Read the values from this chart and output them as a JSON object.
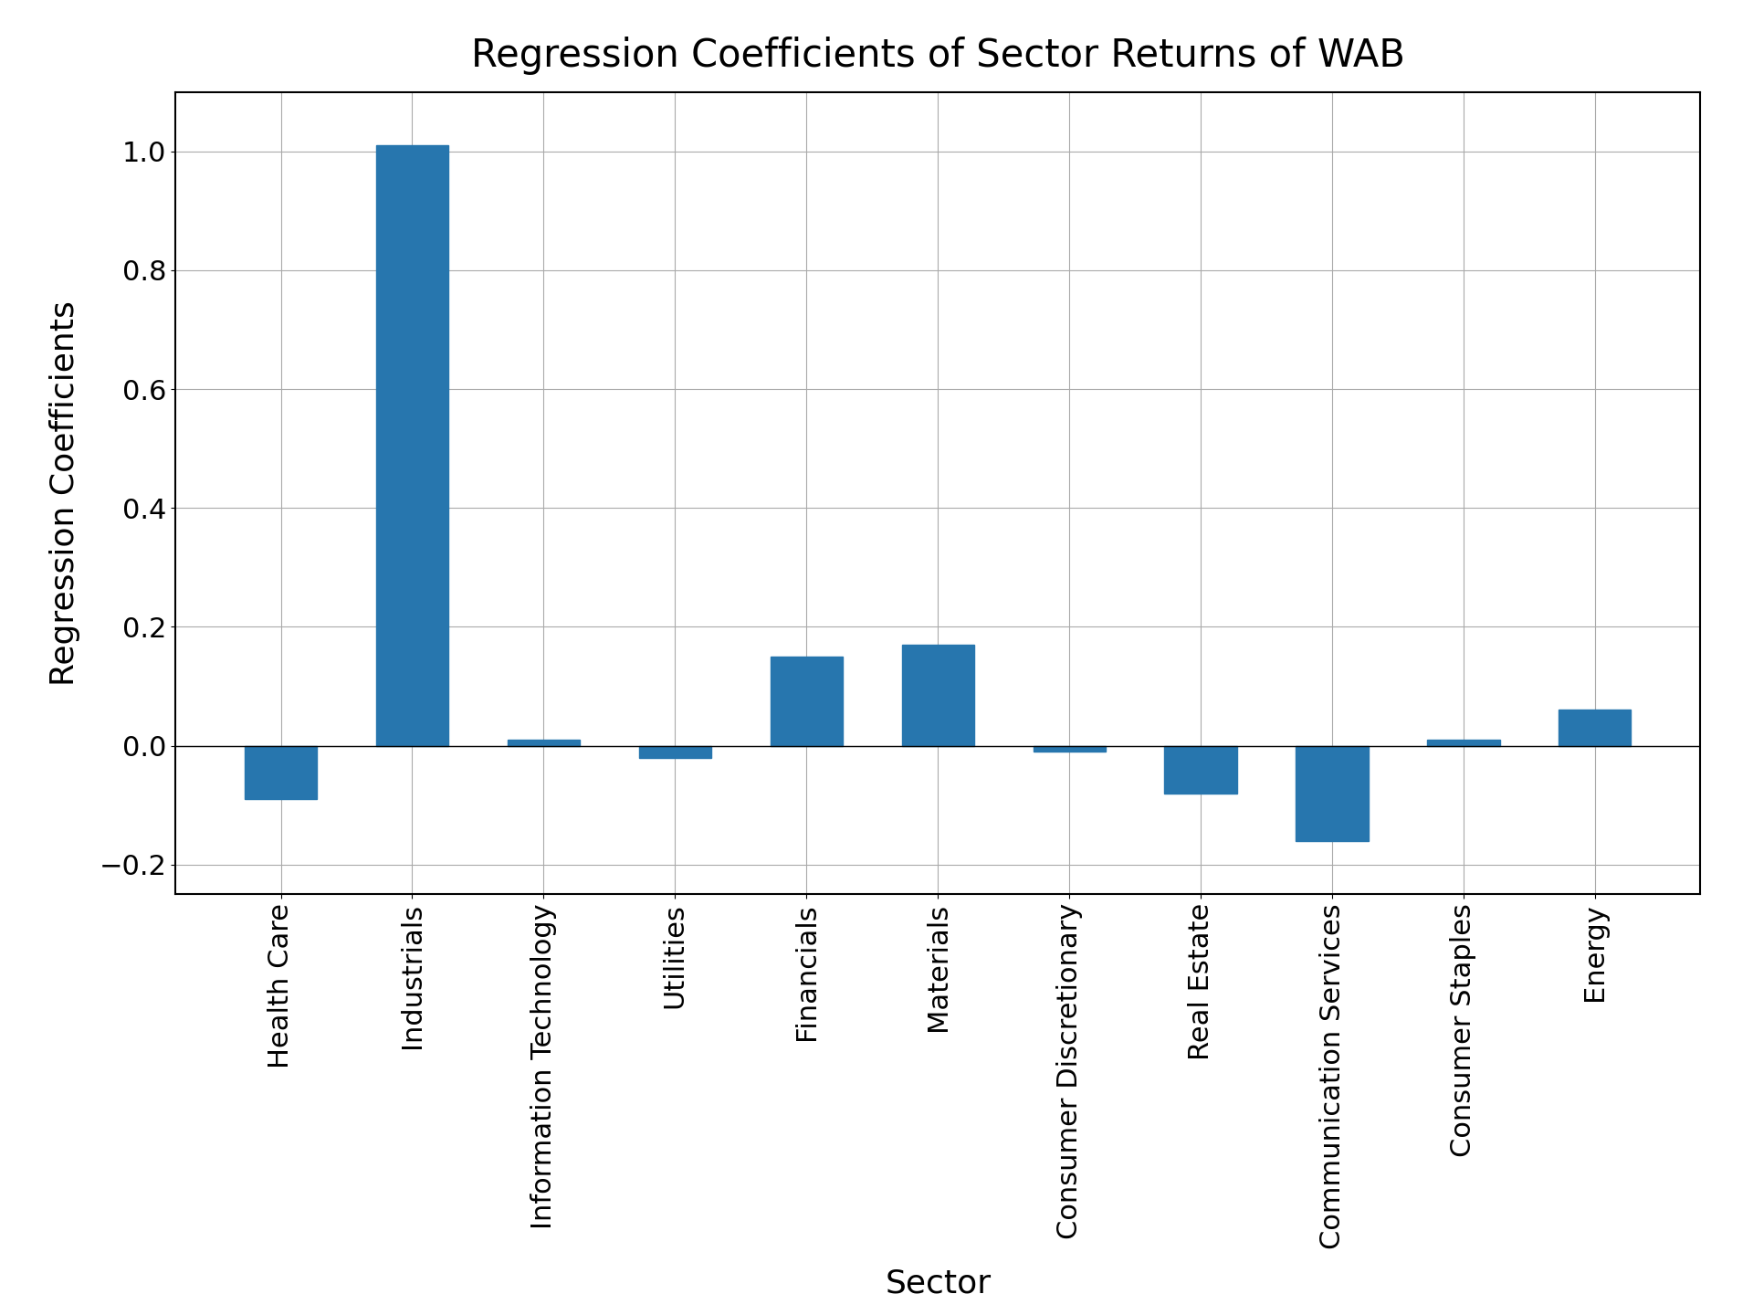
{
  "title": "Regression Coefficients of Sector Returns of WAB",
  "xlabel": "Sector",
  "ylabel": "Regression Coefficients",
  "categories": [
    "Health Care",
    "Industrials",
    "Information Technology",
    "Utilities",
    "Financials",
    "Materials",
    "Consumer Discretionary",
    "Real Estate",
    "Communication Services",
    "Consumer Staples",
    "Energy"
  ],
  "values": [
    -0.09,
    1.01,
    0.01,
    -0.02,
    0.15,
    0.17,
    -0.01,
    -0.08,
    -0.16,
    0.01,
    0.06
  ],
  "bar_color": "#2776ae",
  "background_color": "#ffffff",
  "grid_color": "#aaaaaa",
  "ylim": [
    -0.25,
    1.1
  ],
  "title_fontsize": 30,
  "label_fontsize": 26,
  "tick_fontsize": 22,
  "bar_width": 0.55,
  "figsize": [
    19.2,
    14.4
  ],
  "dpi": 100
}
